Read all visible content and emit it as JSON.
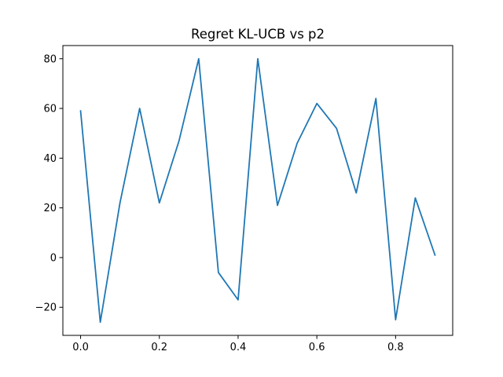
{
  "chart_data": {
    "type": "line",
    "title": "Regret KL-UCB vs p2",
    "xlabel": "",
    "ylabel": "",
    "xlim": [
      -0.045,
      0.945
    ],
    "ylim": [
      -31.3,
      85.3
    ],
    "xticks": [
      0.0,
      0.2,
      0.4,
      0.6,
      0.8
    ],
    "xtick_labels": [
      "0.0",
      "0.2",
      "0.4",
      "0.6",
      "0.8"
    ],
    "yticks": [
      -20,
      0,
      20,
      40,
      60,
      80
    ],
    "ytick_labels": [
      "−20",
      "0",
      "20",
      "40",
      "60",
      "80"
    ],
    "grid": false,
    "legend": "none",
    "series": [
      {
        "color": "#1f77b4",
        "x": [
          0.0,
          0.05,
          0.1,
          0.15,
          0.2,
          0.25,
          0.3,
          0.35,
          0.4,
          0.45,
          0.5,
          0.55,
          0.6,
          0.65,
          0.7,
          0.75,
          0.8,
          0.85,
          0.9
        ],
        "y": [
          59,
          -26,
          22,
          60,
          22,
          47,
          80,
          -6,
          -17,
          80,
          21,
          46,
          62,
          52,
          26,
          64,
          -25,
          24,
          1
        ]
      }
    ]
  }
}
